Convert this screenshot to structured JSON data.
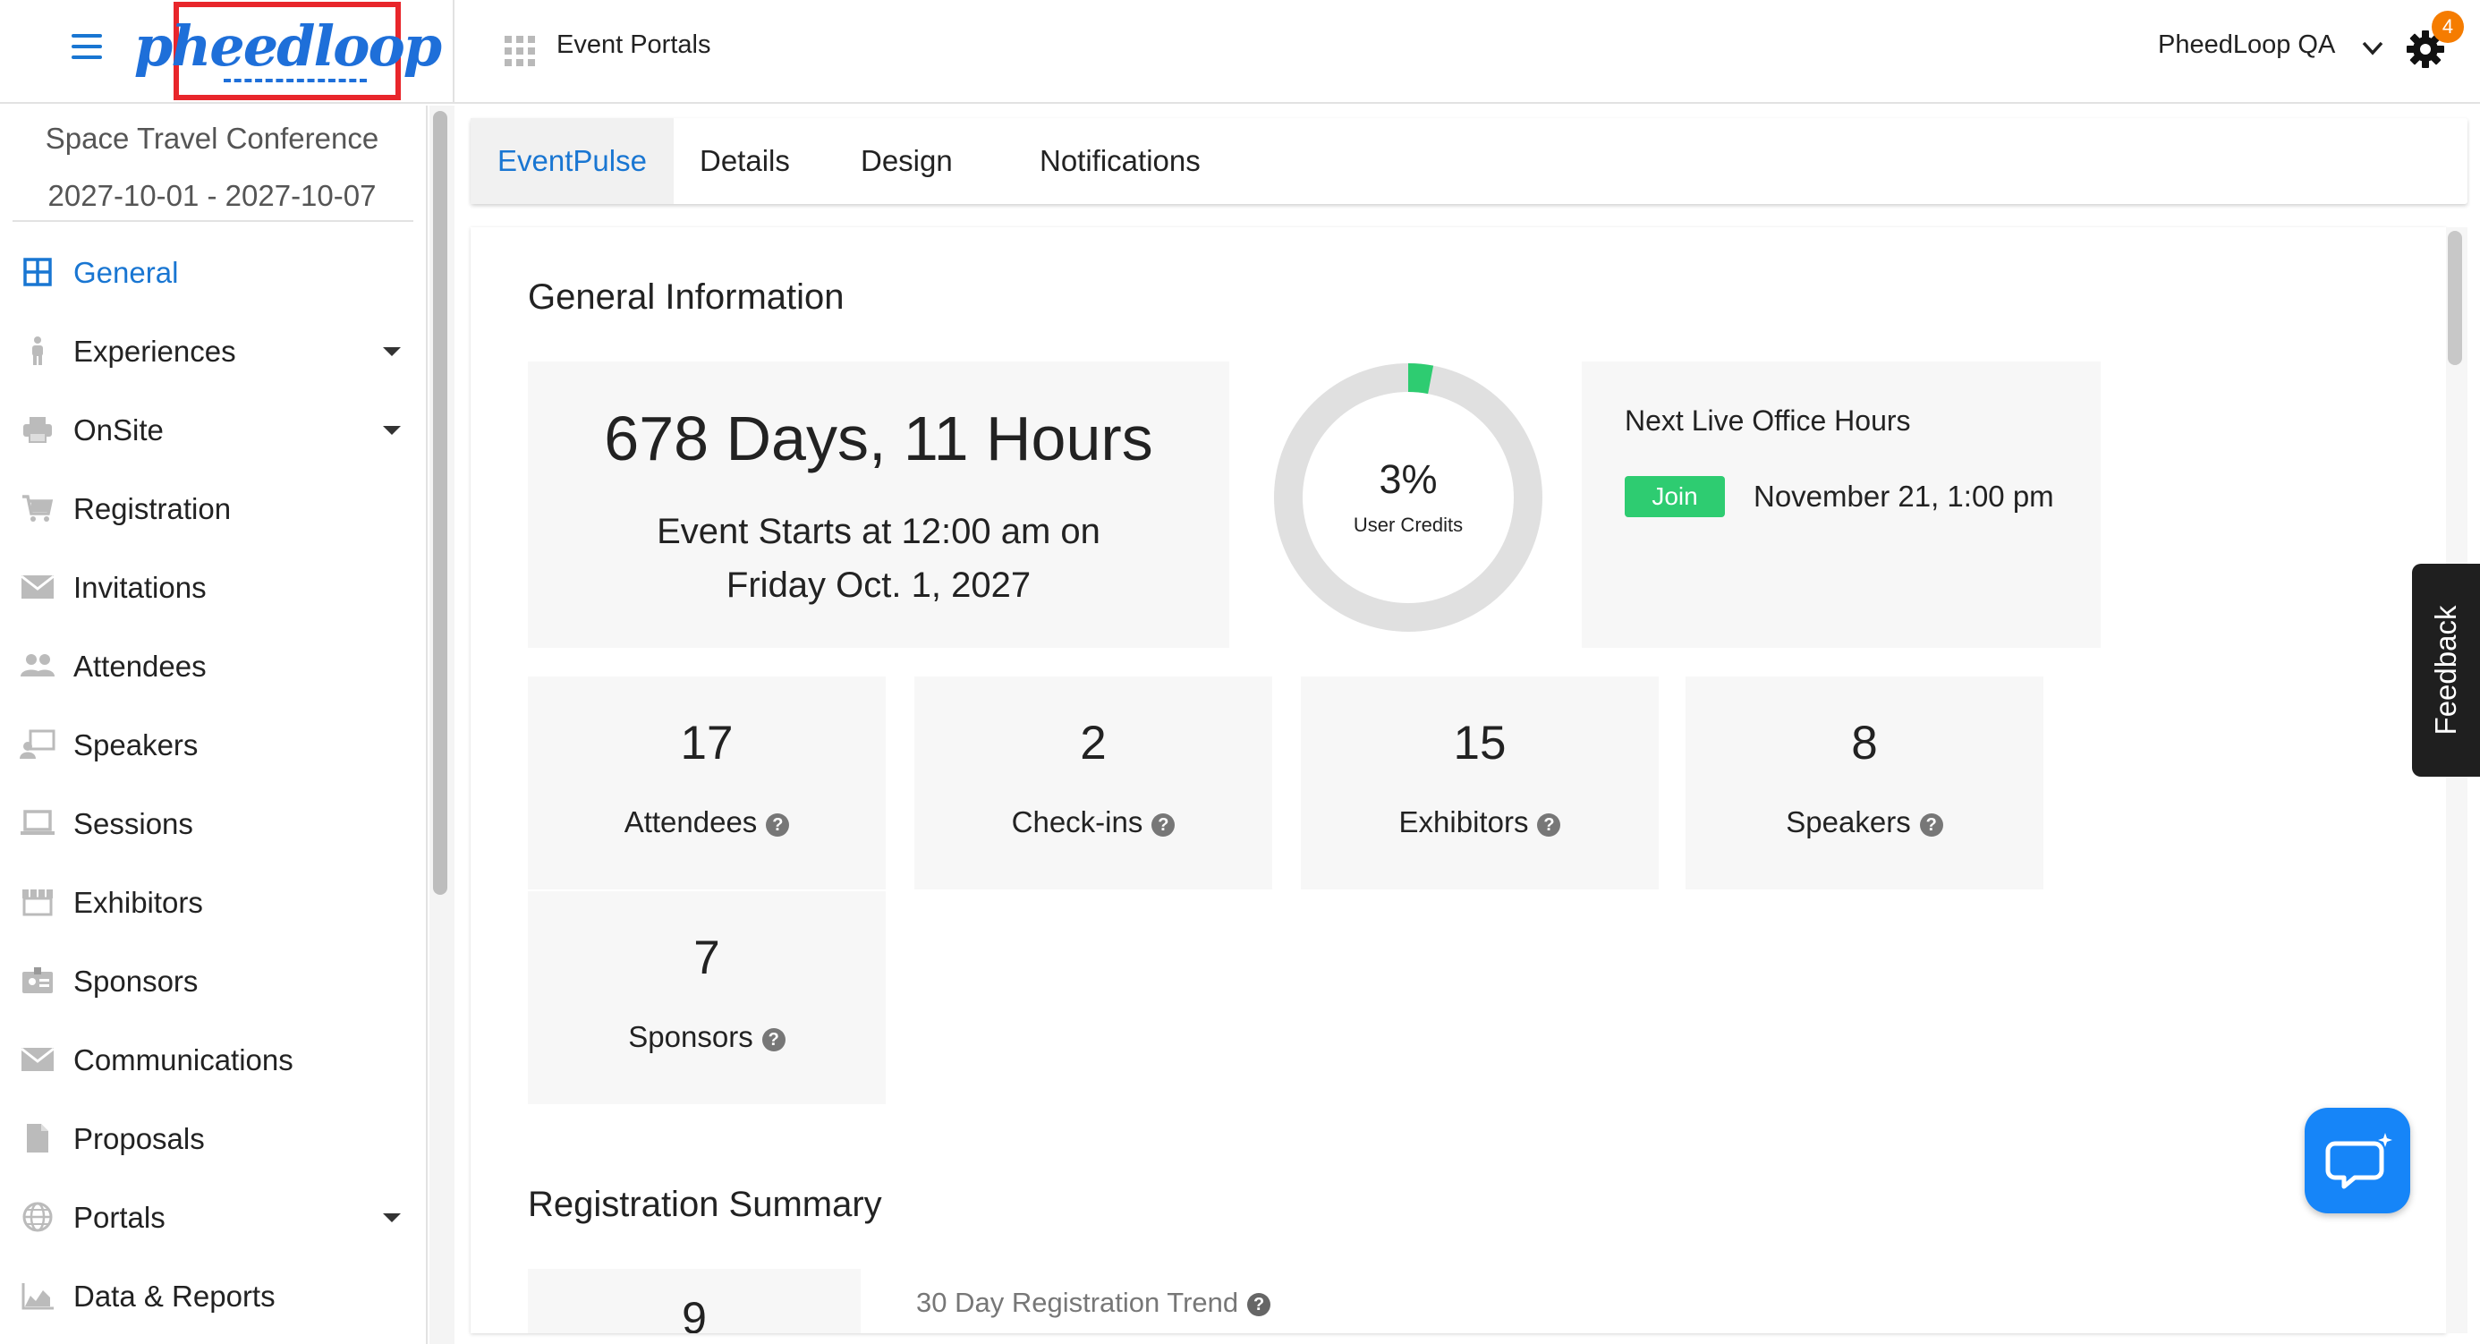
{
  "header": {
    "logo_text": "pheedloop",
    "section_label": "Event Portals",
    "account_name": "PheedLoop QA",
    "notification_count": "4"
  },
  "sidebar": {
    "event_name": "Space Travel Conference",
    "event_dates": "2027-10-01 - 2027-10-07",
    "items": [
      {
        "label": "General",
        "icon": "dashboard-grid-icon",
        "active": true
      },
      {
        "label": "Experiences",
        "icon": "person-icon",
        "expandable": true
      },
      {
        "label": "OnSite",
        "icon": "printer-icon",
        "expandable": true
      },
      {
        "label": "Registration",
        "icon": "cart-icon"
      },
      {
        "label": "Invitations",
        "icon": "envelope-icon"
      },
      {
        "label": "Attendees",
        "icon": "people-icon"
      },
      {
        "label": "Speakers",
        "icon": "presenter-icon"
      },
      {
        "label": "Sessions",
        "icon": "laptop-icon"
      },
      {
        "label": "Exhibitors",
        "icon": "storefront-icon"
      },
      {
        "label": "Sponsors",
        "icon": "badge-icon"
      },
      {
        "label": "Communications",
        "icon": "envelope-icon"
      },
      {
        "label": "Proposals",
        "icon": "document-icon"
      },
      {
        "label": "Portals",
        "icon": "globe-icon",
        "expandable": true
      },
      {
        "label": "Data & Reports",
        "icon": "chart-icon"
      }
    ]
  },
  "tabs": [
    {
      "label": "EventPulse",
      "active": true
    },
    {
      "label": "Details"
    },
    {
      "label": "Design"
    },
    {
      "label": "Notifications"
    }
  ],
  "general": {
    "title": "General Information",
    "countdown": "678 Days, 11 Hours",
    "starts_line1": "Event Starts at 12:00 am on",
    "starts_line2": "Friday Oct. 1, 2027",
    "user_credits_percent": "3%",
    "user_credits_fraction": 0.03,
    "user_credits_label": "User Credits",
    "office_hours_title": "Next Live Office Hours",
    "join_label": "Join",
    "office_hours_time": "November 21, 1:00 pm"
  },
  "stats": [
    {
      "value": "17",
      "label": "Attendees"
    },
    {
      "value": "2",
      "label": "Check-ins"
    },
    {
      "value": "15",
      "label": "Exhibitors"
    },
    {
      "value": "8",
      "label": "Speakers"
    },
    {
      "value": "7",
      "label": "Sponsors"
    }
  ],
  "registration": {
    "title": "Registration Summary",
    "count": "9",
    "trend_label": "30 Day Registration Trend"
  },
  "feedback_label": "Feedback",
  "colors": {
    "accent": "#1976d2",
    "join_green": "#2ecc71",
    "donut_fill": "#2ecc71",
    "badge_orange": "#f57c00",
    "logo_border": "#e8262b",
    "chat_blue": "#1685f8"
  }
}
